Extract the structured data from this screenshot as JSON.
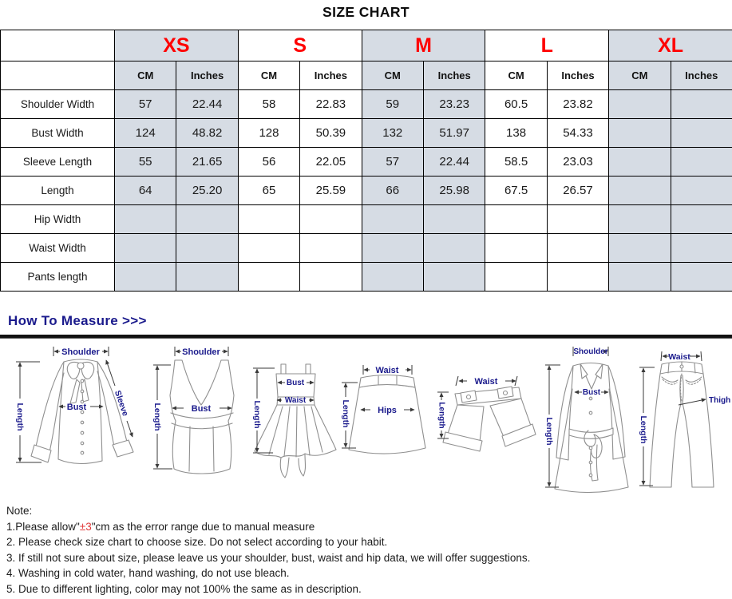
{
  "title": "SIZE CHART",
  "table": {
    "sizes": [
      {
        "label": "XS",
        "shaded": true
      },
      {
        "label": "S",
        "shaded": false
      },
      {
        "label": "M",
        "shaded": true
      },
      {
        "label": "L",
        "shaded": false
      },
      {
        "label": "XL",
        "shaded": true
      }
    ],
    "unit_headers": [
      "CM",
      "Inches"
    ],
    "rows": [
      {
        "label": "Shoulder Width",
        "values": [
          "57",
          "22.44",
          "58",
          "22.83",
          "59",
          "23.23",
          "60.5",
          "23.82",
          "",
          ""
        ]
      },
      {
        "label": "Bust Width",
        "values": [
          "124",
          "48.82",
          "128",
          "50.39",
          "132",
          "51.97",
          "138",
          "54.33",
          "",
          ""
        ]
      },
      {
        "label": "Sleeve Length",
        "values": [
          "55",
          "21.65",
          "56",
          "22.05",
          "57",
          "22.44",
          "58.5",
          "23.03",
          "",
          ""
        ]
      },
      {
        "label": "Length",
        "values": [
          "64",
          "25.20",
          "65",
          "25.59",
          "66",
          "25.98",
          "67.5",
          "26.57",
          "",
          ""
        ]
      },
      {
        "label": "Hip Width",
        "values": [
          "",
          "",
          "",
          "",
          "",
          "",
          "",
          "",
          "",
          ""
        ]
      },
      {
        "label": "Waist Width",
        "values": [
          "",
          "",
          "",
          "",
          "",
          "",
          "",
          "",
          "",
          ""
        ]
      },
      {
        "label": "Pants length",
        "values": [
          "",
          "",
          "",
          "",
          "",
          "",
          "",
          "",
          "",
          ""
        ]
      }
    ]
  },
  "measure": {
    "title": "How To Measure >>>",
    "figures": [
      {
        "name": "blouse",
        "labels": [
          "Shoulder",
          "Bust",
          "Sleeve",
          "Length"
        ]
      },
      {
        "name": "vest-top",
        "labels": [
          "Shoulder",
          "Bust",
          "Length"
        ]
      },
      {
        "name": "dress",
        "labels": [
          "Bust",
          "Waist",
          "Length"
        ]
      },
      {
        "name": "skirt",
        "labels": [
          "Waist",
          "Hips",
          "Length"
        ]
      },
      {
        "name": "shorts",
        "labels": [
          "Waist",
          "Length"
        ]
      },
      {
        "name": "coat",
        "labels": [
          "Shoulder",
          "Bust",
          "Length"
        ]
      },
      {
        "name": "pants",
        "labels": [
          "Waist",
          "Thigh",
          "Length"
        ]
      }
    ]
  },
  "notes": {
    "heading": "Note:",
    "item1": {
      "prefix": "1.Please allow\"",
      "highlight": "±3",
      "suffix": "\"cm as the error range due to manual measure"
    },
    "items": [
      "2. Please check size chart to choose size. Do not select according to your habit.",
      "3. If still not sure about size, please leave us your shoulder, bust, waist and hip data, we will offer suggestions.",
      "4. Washing in cold water, hand washing, do not use bleach.",
      "5. Due to different lighting, color may not 100% the same as in description."
    ]
  },
  "colors": {
    "size_label_red": "#ff0000",
    "header_shade": "#d6dce4",
    "measure_navy": "#1a1a8c",
    "note_highlight_red": "#e03a3a",
    "table_border": "#000000"
  }
}
